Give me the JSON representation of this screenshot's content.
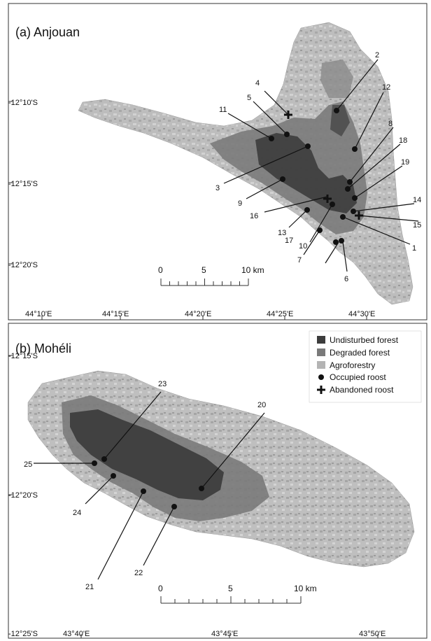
{
  "panels": {
    "a": {
      "title": "(a) Anjouan",
      "lat_labels": [
        "-12°10'S",
        "-12°15'S",
        "-12°20'S"
      ],
      "lon_labels": [
        "44°10'E",
        "44°15'E",
        "44°20'E",
        "44°25'E",
        "44°30'E"
      ],
      "scale": {
        "ticks": [
          "0",
          "5",
          "10 km"
        ]
      },
      "occupied_roosts": [
        "1",
        "2",
        "3",
        "5",
        "6",
        "7",
        "8",
        "9",
        "10",
        "11",
        "12",
        "13",
        "14",
        "17",
        "18",
        "19"
      ],
      "abandoned_roosts": [
        "4",
        "15",
        "16"
      ]
    },
    "b": {
      "title": "(b) Mohéli",
      "lat_labels": [
        "-12°15'S",
        "-12°20'S",
        "-12°25'S"
      ],
      "lon_labels": [
        "43°40'E",
        "43°45'E",
        "43°50'E"
      ],
      "scale": {
        "ticks": [
          "0",
          "5",
          "10 km"
        ]
      },
      "occupied_roosts": [
        "20",
        "21",
        "22",
        "23",
        "24",
        "25"
      ],
      "abandoned_roosts": []
    }
  },
  "legend": [
    {
      "label": "Undisturbed forest",
      "symbol": "square",
      "color": "#3c3c3c"
    },
    {
      "label": "Degraded forest",
      "symbol": "square",
      "color": "#7a7a7a"
    },
    {
      "label": "Agroforestry",
      "symbol": "square",
      "color": "#b4b4b4"
    },
    {
      "label": "Occupied roost",
      "symbol": "circle",
      "color": "#111111"
    },
    {
      "label": "Abandoned roost",
      "symbol": "cross",
      "color": "#111111"
    }
  ],
  "colors": {
    "undisturbed_forest": "#3c3c3c",
    "degraded_forest": "#7a7a7a",
    "agroforestry": "#b4b4b4",
    "background_land": "#c8c8c8"
  }
}
